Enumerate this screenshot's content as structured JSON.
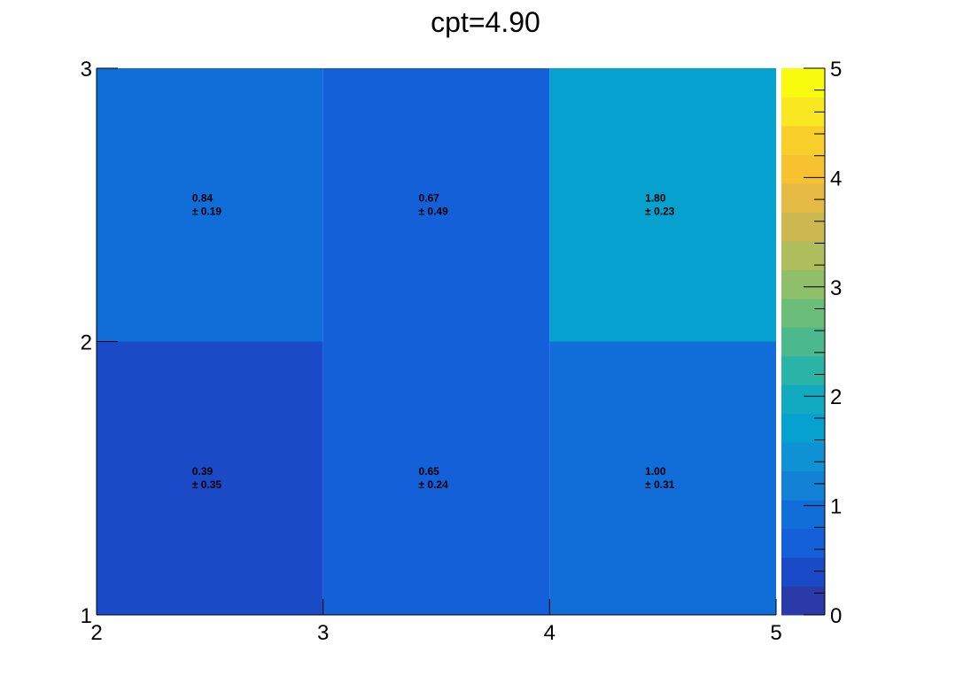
{
  "chart_data": {
    "type": "heatmap",
    "title": "cpt=4.90",
    "xlabel": "",
    "ylabel": "",
    "x_edges": [
      2,
      3,
      4,
      5
    ],
    "y_edges": [
      1,
      2,
      3
    ],
    "xlim": [
      2,
      5
    ],
    "ylim": [
      1,
      3
    ],
    "x_ticks": [
      "2",
      "3",
      "4",
      "5"
    ],
    "y_ticks": [
      "1",
      "2",
      "3"
    ],
    "cells": [
      {
        "x": 2.5,
        "y": 1.5,
        "value": 0.39,
        "error": 0.35,
        "value_label": "0.39",
        "error_label": "± 0.35"
      },
      {
        "x": 3.5,
        "y": 1.5,
        "value": 0.65,
        "error": 0.24,
        "value_label": "0.65",
        "error_label": "± 0.24"
      },
      {
        "x": 4.5,
        "y": 1.5,
        "value": 1.0,
        "error": 0.31,
        "value_label": "1.00",
        "error_label": "± 0.31"
      },
      {
        "x": 2.5,
        "y": 2.5,
        "value": 0.84,
        "error": 0.19,
        "value_label": "0.84",
        "error_label": "± 0.19"
      },
      {
        "x": 3.5,
        "y": 2.5,
        "value": 0.67,
        "error": 0.49,
        "value_label": "0.67",
        "error_label": "± 0.49"
      },
      {
        "x": 4.5,
        "y": 2.5,
        "value": 1.8,
        "error": 0.23,
        "value_label": "1.80",
        "error_label": "± 0.23"
      }
    ],
    "colorbar": {
      "range": [
        0,
        5
      ],
      "ticks": [
        "0",
        "1",
        "2",
        "3",
        "4",
        "5"
      ],
      "palette": [
        "#2a3aa9",
        "#1b4ac6",
        "#1360d9",
        "#116ed9",
        "#1382d6",
        "#0f92d4",
        "#06a1cf",
        "#12aac0",
        "#2ab3a7",
        "#4bb98d",
        "#6bbd7a",
        "#90bf6b",
        "#b0bd5c",
        "#cdb750",
        "#e4ba45",
        "#f6c22f",
        "#f8cf2a",
        "#f9e722",
        "#f9fb0e"
      ]
    }
  }
}
